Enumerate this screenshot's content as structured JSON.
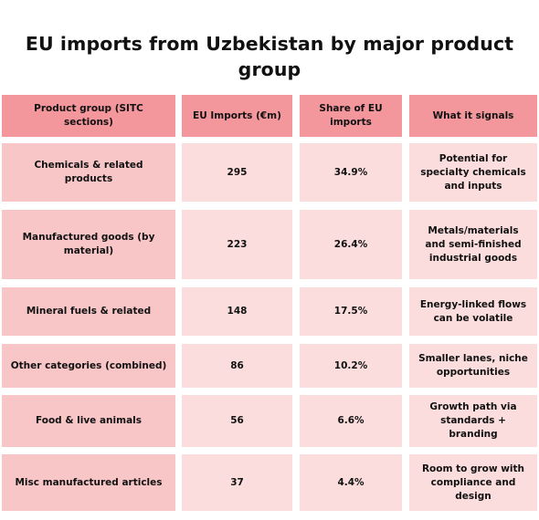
{
  "title": "EU imports from Uzbekistan by major product group",
  "table": {
    "headers": [
      "Product group (SITC sections)",
      "EU Imports (€m)",
      "Share of EU imports",
      "What it signals"
    ],
    "rows": [
      {
        "group": "Chemicals & related products",
        "imports": "295",
        "share": "34.9%",
        "signal": "Potential for specialty chemicals and inputs"
      },
      {
        "group": "Manufactured goods (by material)",
        "imports": "223",
        "share": "26.4%",
        "signal": "Metals/materials and semi-finished industrial goods"
      },
      {
        "group": "Mineral fuels & related",
        "imports": "148",
        "share": "17.5%",
        "signal": "Energy-linked flows can be volatile"
      },
      {
        "group": "Other categories (combined)",
        "imports": "86",
        "share": "10.2%",
        "signal": "Smaller lanes, niche opportunities"
      },
      {
        "group": "Food & live animals",
        "imports": "56",
        "share": "6.6%",
        "signal": "Growth path via standards + branding"
      },
      {
        "group": "Misc manufactured articles",
        "imports": "37",
        "share": "4.4%",
        "signal": "Room to grow with compliance and design"
      }
    ]
  },
  "colors": {
    "header": "#f4979c",
    "first_column": "#f9c6c8",
    "body": "#fcdddd"
  }
}
